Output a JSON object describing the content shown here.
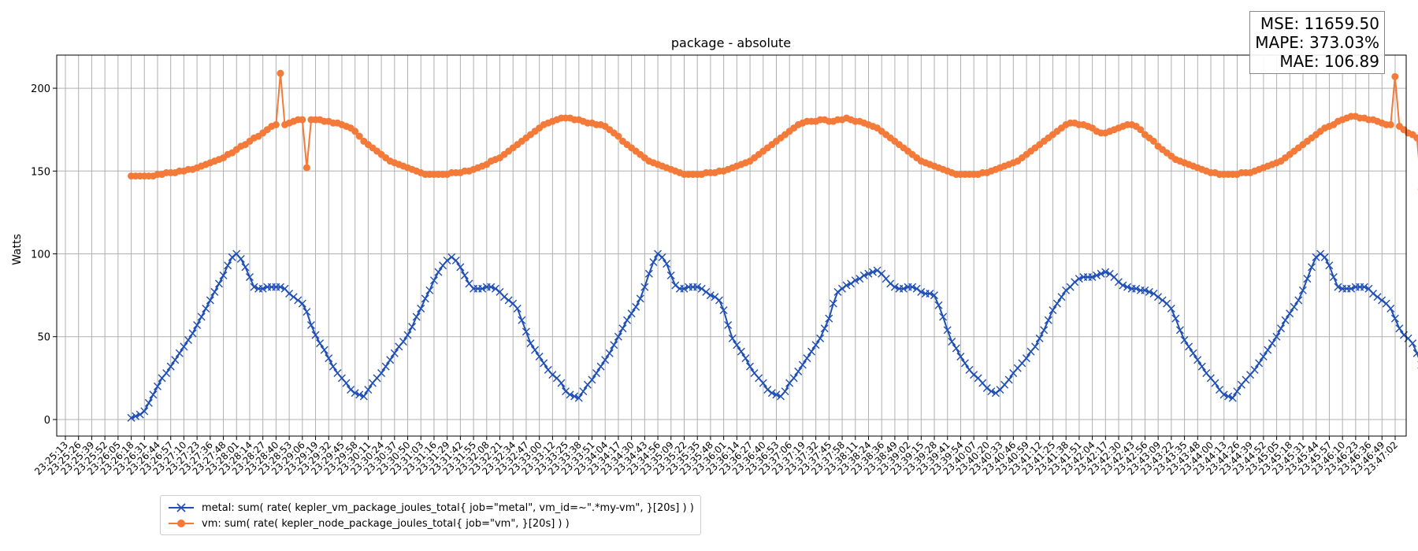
{
  "chart_data": {
    "type": "line",
    "title": "package - absolute",
    "ylabel": "Watts",
    "xlabel": "",
    "ylim": [
      -10,
      220
    ],
    "yticks": [
      0,
      50,
      100,
      150,
      200
    ],
    "grid": true,
    "legend_position": "bottom-left",
    "x_tick_labels": [
      "23:25:13",
      "23:25:26",
      "23:25:39",
      "23:25:52",
      "23:26:05",
      "23:26:18",
      "23:26:31",
      "23:26:44",
      "23:26:57",
      "23:27:10",
      "23:27:23",
      "23:27:36",
      "23:27:48",
      "23:28:01",
      "23:28:14",
      "23:28:27",
      "23:28:40",
      "23:28:53",
      "23:29:06",
      "23:29:19",
      "23:29:32",
      "23:29:45",
      "23:29:58",
      "23:30:11",
      "23:30:24",
      "23:30:37",
      "23:30:50",
      "23:31:03",
      "23:31:16",
      "23:31:29",
      "23:31:42",
      "23:31:55",
      "23:32:08",
      "23:32:21",
      "23:32:34",
      "23:32:47",
      "23:33:00",
      "23:33:12",
      "23:33:25",
      "23:33:38",
      "23:33:51",
      "23:34:04",
      "23:34:17",
      "23:34:30",
      "23:34:43",
      "23:34:56",
      "23:35:09",
      "23:35:22",
      "23:35:35",
      "23:35:48",
      "23:36:01",
      "23:36:14",
      "23:36:27",
      "23:36:40",
      "23:36:53",
      "23:37:06",
      "23:37:19",
      "23:37:32",
      "23:37:45",
      "23:37:58",
      "23:38:11",
      "23:38:24",
      "23:38:36",
      "23:38:49",
      "23:39:02",
      "23:39:15",
      "23:39:28",
      "23:39:41",
      "23:39:54",
      "23:40:07",
      "23:40:20",
      "23:40:33",
      "23:40:46",
      "23:40:59",
      "23:41:12",
      "23:41:25",
      "23:41:38",
      "23:41:51",
      "23:42:04",
      "23:42:17",
      "23:42:30",
      "23:42:43",
      "23:42:56",
      "23:43:09",
      "23:43:22",
      "23:43:35",
      "23:43:48",
      "23:44:00",
      "23:44:13",
      "23:44:26",
      "23:44:39",
      "23:44:52",
      "23:45:05",
      "23:45:18",
      "23:45:31",
      "23:45:44",
      "23:45:57",
      "23:46:10",
      "23:46:23",
      "23:46:36",
      "23:46:49",
      "23:47:02"
    ],
    "series": [
      {
        "name": "metal: sum( rate( kepler_vm_package_joules_total{ job=\"metal\", vm_id=~\".*my-vm\", }[20s] ) )",
        "color": "#1f4fb5",
        "marker": "x",
        "x_start": 5,
        "x_step": 0.3333,
        "values": [
          1,
          2,
          3,
          5,
          10,
          15,
          20,
          25,
          28,
          32,
          36,
          40,
          44,
          48,
          52,
          57,
          62,
          67,
          72,
          77,
          82,
          87,
          93,
          98,
          100,
          97,
          92,
          86,
          80,
          79,
          79,
          80,
          80,
          80,
          80,
          79,
          76,
          74,
          72,
          70,
          65,
          57,
          51,
          46,
          42,
          37,
          32,
          28,
          25,
          22,
          18,
          16,
          15,
          14,
          18,
          22,
          25,
          28,
          32,
          36,
          40,
          44,
          47,
          51,
          56,
          62,
          67,
          73,
          78,
          84,
          89,
          93,
          96,
          98,
          96,
          92,
          87,
          82,
          79,
          79,
          79,
          80,
          80,
          79,
          77,
          74,
          72,
          70,
          67,
          60,
          53,
          46,
          42,
          38,
          34,
          30,
          27,
          25,
          22,
          17,
          15,
          14,
          13,
          17,
          21,
          24,
          28,
          32,
          36,
          40,
          45,
          50,
          55,
          60,
          64,
          68,
          73,
          80,
          88,
          95,
          100,
          98,
          94,
          87,
          81,
          79,
          79,
          80,
          80,
          80,
          79,
          77,
          75,
          74,
          72,
          66,
          57,
          49,
          45,
          41,
          37,
          32,
          28,
          25,
          22,
          18,
          16,
          15,
          14,
          17,
          22,
          25,
          29,
          33,
          37,
          41,
          45,
          49,
          55,
          61,
          70,
          77,
          79,
          81,
          82,
          84,
          85,
          87,
          88,
          89,
          90,
          88,
          85,
          82,
          80,
          79,
          79,
          80,
          80,
          79,
          77,
          76,
          76,
          75,
          69,
          62,
          54,
          47,
          43,
          38,
          34,
          30,
          27,
          25,
          22,
          19,
          17,
          16,
          18,
          21,
          24,
          28,
          31,
          34,
          37,
          41,
          44,
          49,
          54,
          60,
          66,
          70,
          74,
          78,
          80,
          83,
          85,
          86,
          86,
          86,
          87,
          88,
          89,
          88,
          86,
          83,
          81,
          80,
          79,
          79,
          78,
          78,
          77,
          76,
          74,
          72,
          70,
          67,
          61,
          54,
          48,
          44,
          40,
          36,
          32,
          28,
          25,
          22,
          18,
          15,
          14,
          13,
          17,
          21,
          24,
          27,
          30,
          34,
          38,
          42,
          46,
          50,
          55,
          60,
          64,
          68,
          72,
          78,
          85,
          92,
          98,
          100,
          98,
          93,
          86,
          80,
          79,
          79,
          79,
          80,
          80,
          80,
          79,
          76,
          74,
          72,
          70,
          67,
          61,
          55,
          51,
          49,
          46,
          40,
          33,
          27,
          24,
          23
        ]
      },
      {
        "name": "vm: sum( rate( kepler_node_package_joules_total{ job=\"vm\", }[20s] ) )",
        "color": "#f47a3a",
        "marker": "o",
        "x_start": 5,
        "x_step": 0.3333,
        "values": [
          147,
          147,
          147,
          147,
          147,
          147,
          148,
          148,
          149,
          149,
          149,
          150,
          150,
          151,
          151,
          152,
          153,
          154,
          155,
          156,
          157,
          158,
          160,
          161,
          163,
          165,
          166,
          168,
          170,
          171,
          173,
          175,
          177,
          178,
          209,
          178,
          179,
          180,
          181,
          181,
          152,
          181,
          181,
          181,
          180,
          180,
          179,
          179,
          178,
          177,
          176,
          174,
          171,
          168,
          166,
          164,
          162,
          160,
          158,
          156,
          155,
          154,
          153,
          152,
          151,
          150,
          149,
          148,
          148,
          148,
          148,
          148,
          148,
          149,
          149,
          149,
          150,
          150,
          151,
          152,
          153,
          154,
          156,
          157,
          158,
          160,
          162,
          164,
          166,
          168,
          170,
          172,
          174,
          176,
          178,
          179,
          180,
          181,
          182,
          182,
          182,
          181,
          181,
          180,
          179,
          179,
          178,
          178,
          177,
          175,
          173,
          171,
          168,
          166,
          164,
          162,
          160,
          158,
          156,
          155,
          154,
          153,
          152,
          151,
          150,
          149,
          148,
          148,
          148,
          148,
          148,
          149,
          149,
          149,
          150,
          150,
          151,
          152,
          153,
          154,
          155,
          156,
          158,
          160,
          162,
          164,
          166,
          168,
          170,
          172,
          174,
          176,
          178,
          179,
          180,
          180,
          180,
          181,
          181,
          180,
          180,
          181,
          181,
          182,
          181,
          180,
          180,
          179,
          178,
          177,
          176,
          174,
          172,
          170,
          168,
          166,
          164,
          162,
          160,
          158,
          156,
          155,
          154,
          153,
          152,
          151,
          150,
          149,
          148,
          148,
          148,
          148,
          148,
          148,
          149,
          149,
          150,
          151,
          152,
          153,
          154,
          155,
          156,
          158,
          160,
          162,
          164,
          166,
          168,
          170,
          172,
          174,
          176,
          178,
          179,
          179,
          178,
          178,
          177,
          176,
          174,
          173,
          173,
          174,
          175,
          176,
          177,
          178,
          178,
          177,
          175,
          172,
          170,
          168,
          165,
          163,
          161,
          159,
          157,
          156,
          155,
          154,
          153,
          152,
          151,
          150,
          149,
          149,
          148,
          148,
          148,
          148,
          148,
          149,
          149,
          149,
          150,
          151,
          152,
          153,
          154,
          155,
          156,
          158,
          160,
          162,
          164,
          166,
          168,
          170,
          172,
          174,
          176,
          177,
          178,
          180,
          181,
          182,
          183,
          183,
          182,
          182,
          181,
          181,
          180,
          179,
          178,
          178,
          207,
          177,
          175,
          173,
          172,
          170,
          139,
          167,
          166,
          164,
          162,
          160,
          158,
          157,
          156,
          155,
          154,
          153,
          152,
          151,
          150,
          149,
          149,
          148,
          148,
          148,
          148,
          148,
          148,
          149,
          149,
          150,
          150,
          151,
          152,
          153,
          154,
          155,
          156,
          158,
          160,
          162,
          164,
          166,
          168,
          170,
          172,
          174,
          176,
          178,
          179,
          180,
          181,
          182,
          183,
          184,
          183,
          182,
          181,
          180,
          179,
          178,
          178,
          177,
          175,
          173,
          171,
          169,
          167,
          165,
          163,
          161,
          159,
          157,
          156,
          155,
          154,
          153,
          152,
          151,
          150,
          149
        ]
      }
    ]
  },
  "metrics": {
    "mse": "MSE: 11659.50",
    "mape": "MAPE: 373.03%",
    "mae": "MAE: 106.89"
  }
}
